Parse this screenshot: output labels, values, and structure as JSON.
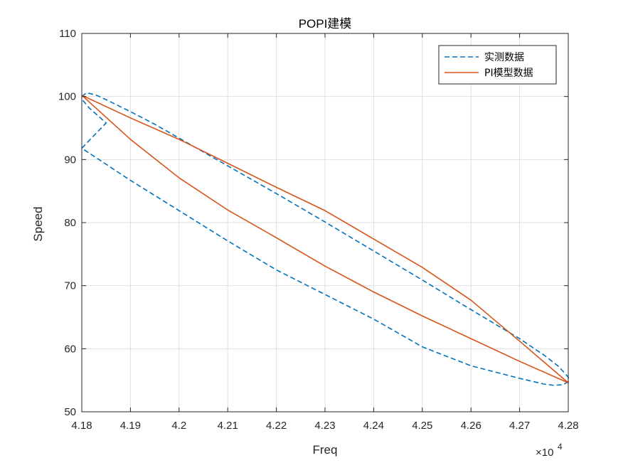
{
  "chart_data": {
    "type": "line",
    "title": "POPI建模",
    "xlabel": "Freq",
    "ylabel": "Speed",
    "x_exponent_label": "×10",
    "x_exponent_power": "4",
    "xlim": [
      4.18,
      4.28
    ],
    "ylim": [
      50,
      110
    ],
    "x_scale_factor": 10000,
    "xticks": [
      "4.18",
      "4.19",
      "4.2",
      "4.21",
      "4.22",
      "4.23",
      "4.24",
      "4.25",
      "4.26",
      "4.27",
      "4.28"
    ],
    "xtick_values": [
      4.18,
      4.19,
      4.2,
      4.21,
      4.22,
      4.23,
      4.24,
      4.25,
      4.26,
      4.27,
      4.28
    ],
    "yticks": [
      "50",
      "60",
      "70",
      "80",
      "90",
      "100",
      "110"
    ],
    "ytick_values": [
      50,
      60,
      70,
      80,
      90,
      100,
      110
    ],
    "grid": true,
    "legend_position": "top-right",
    "series": [
      {
        "name": "实测数据",
        "style": "dashed",
        "color": "#0072BD",
        "points": [
          [
            4.18,
            100.0
          ],
          [
            4.181,
            100.6
          ],
          [
            4.183,
            100.2
          ],
          [
            4.185,
            99.5
          ],
          [
            4.19,
            97.6
          ],
          [
            4.195,
            95.6
          ],
          [
            4.2,
            93.4
          ],
          [
            4.21,
            89.0
          ],
          [
            4.22,
            84.6
          ],
          [
            4.23,
            80.1
          ],
          [
            4.24,
            75.5
          ],
          [
            4.25,
            70.9
          ],
          [
            4.26,
            66.2
          ],
          [
            4.27,
            61.6
          ],
          [
            4.275,
            59.0
          ],
          [
            4.278,
            57.2
          ],
          [
            4.28,
            55.5
          ],
          [
            4.28,
            54.8
          ],
          [
            4.279,
            54.3
          ],
          [
            4.277,
            54.2
          ],
          [
            4.275,
            54.4
          ],
          [
            4.27,
            55.3
          ],
          [
            4.26,
            57.3
          ],
          [
            4.25,
            60.3
          ],
          [
            4.24,
            64.7
          ],
          [
            4.23,
            68.6
          ],
          [
            4.22,
            72.5
          ],
          [
            4.21,
            77.1
          ],
          [
            4.2,
            81.9
          ],
          [
            4.19,
            86.7
          ],
          [
            4.18,
            91.8
          ],
          [
            4.185,
            95.8
          ],
          [
            4.1815,
            98.2
          ],
          [
            4.18,
            99.6
          ]
        ]
      },
      {
        "name": "PI模型数据",
        "style": "solid",
        "color": "#D95319",
        "points": [
          [
            4.18,
            100.2
          ],
          [
            4.19,
            96.6
          ],
          [
            4.2,
            93.2
          ],
          [
            4.21,
            89.4
          ],
          [
            4.22,
            85.6
          ],
          [
            4.23,
            81.9
          ],
          [
            4.24,
            77.4
          ],
          [
            4.25,
            72.9
          ],
          [
            4.26,
            67.7
          ],
          [
            4.27,
            61.2
          ],
          [
            4.28,
            54.6
          ],
          [
            4.27,
            58.0
          ],
          [
            4.26,
            61.6
          ],
          [
            4.25,
            65.2
          ],
          [
            4.24,
            69.0
          ],
          [
            4.23,
            73.1
          ],
          [
            4.22,
            77.6
          ],
          [
            4.21,
            82.0
          ],
          [
            4.2,
            87.1
          ],
          [
            4.19,
            93.2
          ],
          [
            4.18,
            100.2
          ]
        ]
      }
    ]
  }
}
